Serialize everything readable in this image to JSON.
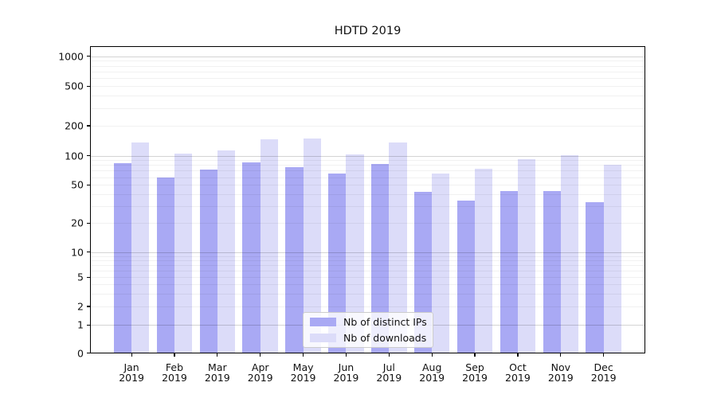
{
  "title": "HDTD 2019",
  "chart_data": {
    "type": "bar",
    "yscale": "symlog",
    "grid": "both",
    "legend_position": "lower center",
    "categories": [
      "Jan 2019",
      "Feb 2019",
      "Mar 2019",
      "Apr 2019",
      "May 2019",
      "Jun 2019",
      "Jul 2019",
      "Aug 2019",
      "Sep 2019",
      "Oct 2019",
      "Nov 2019",
      "Dec 2019"
    ],
    "series": [
      {
        "name": "Nb of distinct IPs",
        "color": "#a9a9f4",
        "values": [
          83,
          60,
          72,
          85,
          76,
          65,
          82,
          42,
          34,
          43,
          43,
          33
        ]
      },
      {
        "name": "Nb of downloads",
        "color": "#dcdcf9",
        "values": [
          136,
          106,
          114,
          146,
          149,
          103,
          135,
          65,
          73,
          93,
          101,
          80
        ]
      }
    ],
    "y_ticks": [
      1000,
      500,
      200,
      100,
      50,
      20,
      10,
      5,
      2,
      1,
      0
    ],
    "y_major_gridlines": [
      1,
      10,
      100,
      1000
    ],
    "xlabel": "",
    "ylabel": ""
  }
}
